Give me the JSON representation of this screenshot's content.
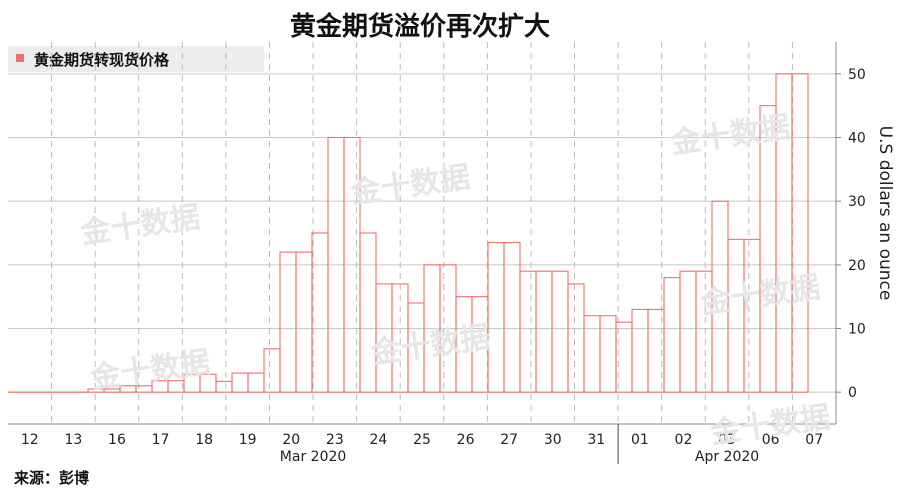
{
  "title": "黄金期货溢价再次扩大",
  "source_note": "来源：彭博",
  "watermark_text": "金十数据",
  "chart_data": {
    "type": "bar",
    "title": "黄金期货溢价再次扩大",
    "legend": [
      {
        "name": "黄金期货转现货价格",
        "color": "#f0706a"
      }
    ],
    "legend_placement": "top-left",
    "grid": true,
    "ylabel": "U.S dollars an ounce",
    "ylim": [
      -5,
      55
    ],
    "yticks": [
      0,
      10,
      20,
      30,
      40,
      50
    ],
    "day_labels": [
      "12",
      "13",
      "16",
      "17",
      "18",
      "19",
      "20",
      "23",
      "24",
      "25",
      "26",
      "27",
      "30",
      "31",
      "01",
      "02",
      "03",
      "06",
      "07"
    ],
    "month_labels": [
      "Mar 2020",
      "Apr 2020"
    ],
    "series": [
      {
        "name": "黄金期货转现货价格",
        "color": "#f0706a",
        "values": [
          0,
          0,
          0,
          0,
          0,
          0.5,
          0.5,
          1,
          1,
          1.8,
          1.8,
          2.8,
          2.8,
          1.7,
          3,
          3,
          6.8,
          22,
          22,
          25,
          40,
          40,
          25,
          17,
          17,
          14,
          20,
          20,
          15,
          15,
          23.5,
          23.5,
          19,
          19,
          19,
          17,
          12,
          12,
          11,
          13,
          13,
          18,
          19,
          19,
          30,
          24,
          24,
          45,
          50,
          50
        ]
      }
    ]
  }
}
